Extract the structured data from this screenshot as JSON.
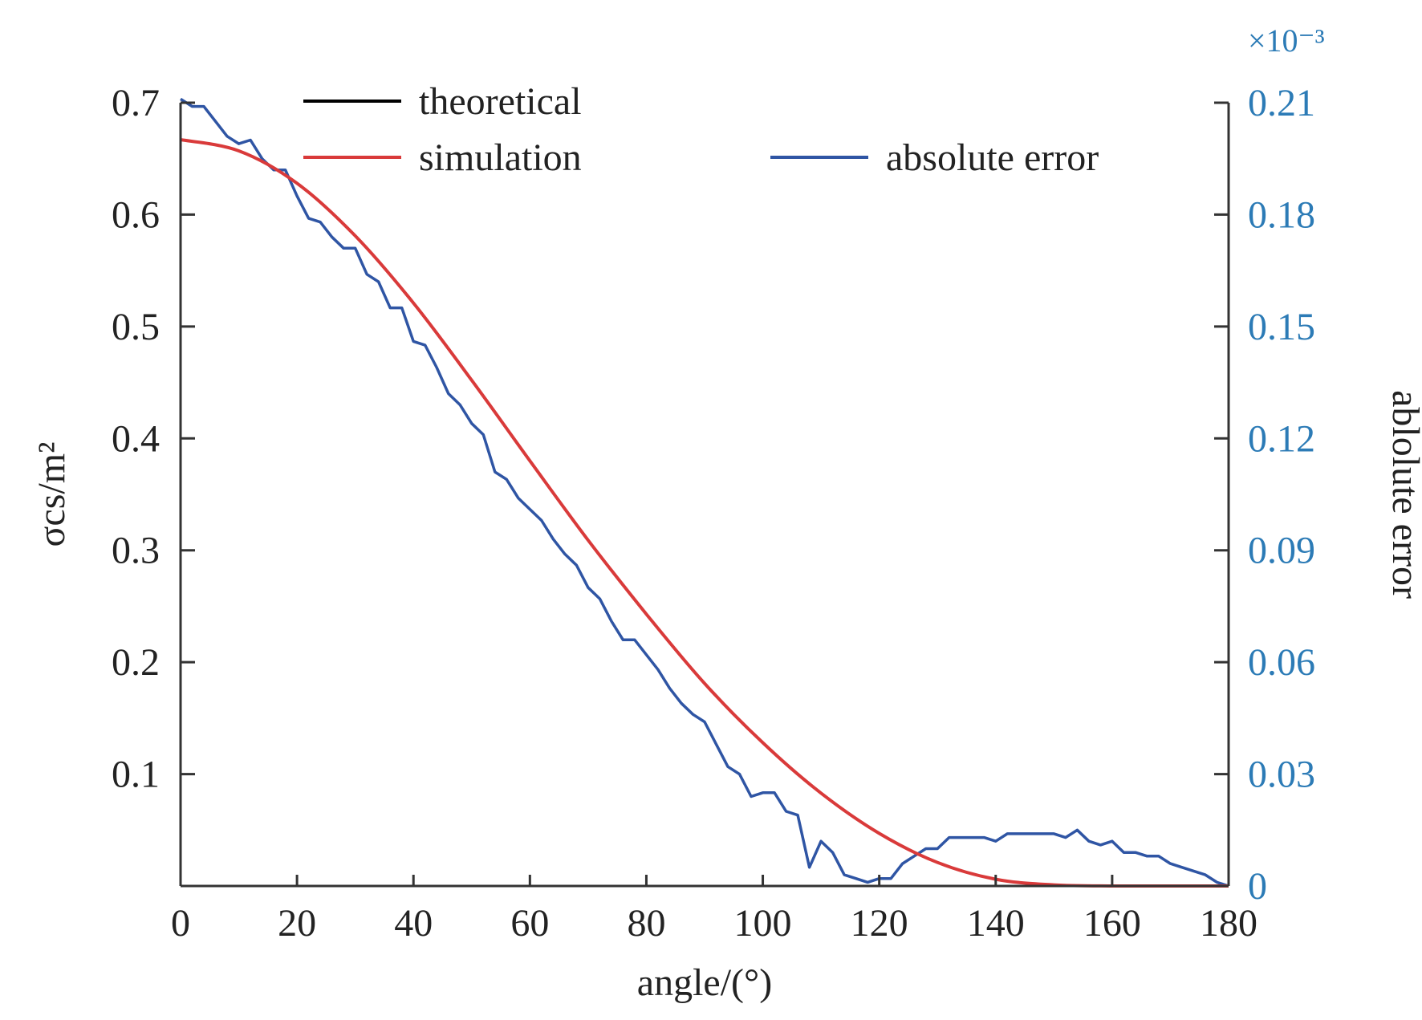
{
  "chart_data": {
    "type": "line",
    "xlabel": "angle/(°)",
    "ylabel_left": "σcs/m²",
    "ylabel_right": "ablolute error",
    "right_axis_multiplier": "×10⁻³",
    "xlim": [
      0,
      180
    ],
    "ylim_left": [
      0,
      0.7
    ],
    "ylim_right": [
      0,
      0.21
    ],
    "x_ticks": [
      "0",
      "20",
      "40",
      "60",
      "80",
      "100",
      "120",
      "140",
      "160",
      "180"
    ],
    "y_ticks_left": [
      "0.1",
      "0.2",
      "0.3",
      "0.4",
      "0.5",
      "0.6",
      "0.7"
    ],
    "y_ticks_right": [
      "0",
      "0.03",
      "0.06",
      "0.09",
      "0.12",
      "0.15",
      "0.18",
      "0.21"
    ],
    "grid": false,
    "legend": [
      {
        "label": "theoretical",
        "color": "#000000"
      },
      {
        "label": "simulation",
        "color": "#d93a3a"
      },
      {
        "label": "absolute error",
        "color": "#2f55a4"
      }
    ],
    "colors": {
      "right_axis": "#2c7bb6",
      "axes": "#333333"
    },
    "series": [
      {
        "name": "theoretical",
        "axis": "left",
        "formula_note": "smooth curve; overlaid by simulation",
        "x": [
          0,
          10,
          20,
          30,
          40,
          50,
          60,
          70,
          80,
          90,
          100,
          110,
          120,
          130,
          140,
          150,
          160,
          170,
          180
        ],
        "values": [
          0.667,
          0.657,
          0.628,
          0.581,
          0.521,
          0.452,
          0.38,
          0.309,
          0.243,
          0.181,
          0.128,
          0.083,
          0.047,
          0.021,
          0.006,
          0.001,
          0.0,
          0.0,
          0.0
        ]
      },
      {
        "name": "simulation",
        "axis": "left",
        "x": [
          0,
          10,
          20,
          30,
          40,
          50,
          60,
          70,
          80,
          90,
          100,
          110,
          120,
          130,
          140,
          150,
          160,
          170,
          180
        ],
        "values": [
          0.667,
          0.657,
          0.628,
          0.581,
          0.521,
          0.452,
          0.38,
          0.309,
          0.243,
          0.181,
          0.128,
          0.083,
          0.047,
          0.021,
          0.006,
          0.001,
          0.0,
          0.0,
          0.0
        ]
      },
      {
        "name": "absolute error",
        "axis": "right",
        "x": [
          0,
          2,
          4,
          6,
          8,
          10,
          12,
          14,
          16,
          18,
          20,
          22,
          24,
          26,
          28,
          30,
          32,
          34,
          36,
          38,
          40,
          42,
          44,
          46,
          48,
          50,
          52,
          54,
          56,
          58,
          60,
          62,
          64,
          66,
          68,
          70,
          72,
          74,
          76,
          78,
          80,
          82,
          84,
          86,
          88,
          90,
          92,
          94,
          96,
          98,
          100,
          102,
          104,
          106,
          108,
          110,
          112,
          114,
          116,
          118,
          120,
          122,
          124,
          126,
          128,
          130,
          132,
          134,
          136,
          138,
          140,
          142,
          144,
          146,
          148,
          150,
          152,
          154,
          156,
          158,
          160,
          162,
          164,
          166,
          168,
          170,
          172,
          174,
          176,
          178,
          180
        ],
        "values": [
          0.211,
          0.209,
          0.209,
          0.205,
          0.201,
          0.199,
          0.2,
          0.195,
          0.192,
          0.192,
          0.185,
          0.179,
          0.178,
          0.174,
          0.171,
          0.171,
          0.164,
          0.162,
          0.155,
          0.155,
          0.146,
          0.145,
          0.139,
          0.132,
          0.129,
          0.124,
          0.121,
          0.111,
          0.109,
          0.104,
          0.101,
          0.098,
          0.093,
          0.089,
          0.086,
          0.08,
          0.077,
          0.071,
          0.066,
          0.066,
          0.062,
          0.058,
          0.053,
          0.049,
          0.046,
          0.044,
          0.038,
          0.032,
          0.03,
          0.024,
          0.025,
          0.025,
          0.02,
          0.019,
          0.005,
          0.012,
          0.009,
          0.003,
          0.002,
          0.001,
          0.002,
          0.002,
          0.006,
          0.008,
          0.01,
          0.01,
          0.013,
          0.013,
          0.013,
          0.013,
          0.012,
          0.014,
          0.014,
          0.014,
          0.014,
          0.014,
          0.013,
          0.015,
          0.012,
          0.011,
          0.012,
          0.009,
          0.009,
          0.008,
          0.008,
          0.006,
          0.005,
          0.004,
          0.003,
          0.001,
          0.0
        ]
      }
    ]
  }
}
